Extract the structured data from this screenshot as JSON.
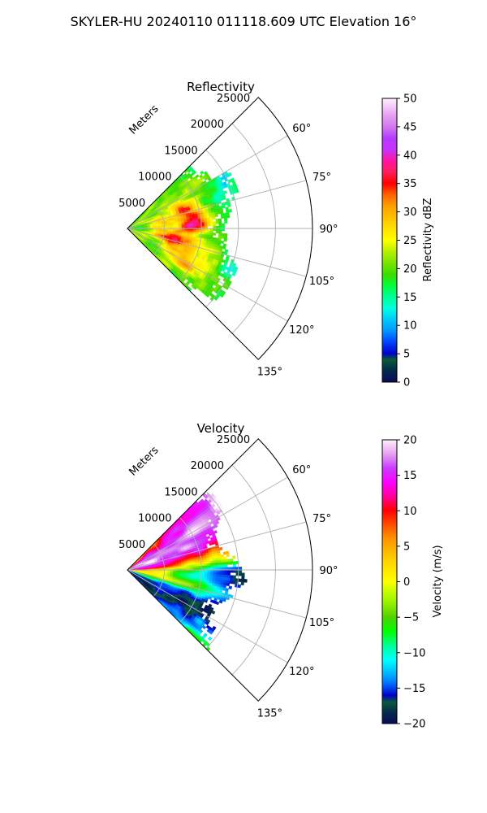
{
  "figure": {
    "suptitle": "SKYLER-HU  20240110  011118.609 UTC Elevation 16°"
  },
  "chart_data": [
    {
      "type": "heatmap",
      "subtype": "polar-sector (radar PPI)",
      "title": "Reflectivity",
      "radial_label": "Meters",
      "radial_ticks": [
        5000,
        10000,
        15000,
        20000,
        25000
      ],
      "radial_tick_labels": [
        "5000",
        "10000",
        "15000",
        "20000",
        "25000"
      ],
      "rlim": [
        0,
        25000
      ],
      "data_extent_m": 17000,
      "theta_ticks_deg": [
        60,
        75,
        90,
        105,
        120,
        135
      ],
      "theta_tick_labels": [
        "60°",
        "75°",
        "90°",
        "105°",
        "120°",
        "135°"
      ],
      "thetalim_deg": [
        45,
        135
      ],
      "grid": true,
      "colorbar": {
        "label": "Reflectivity dBZ",
        "range": [
          0,
          50
        ],
        "ticks": [
          0,
          5,
          10,
          15,
          20,
          25,
          30,
          35,
          40,
          45,
          50
        ],
        "tick_labels": [
          "0",
          "5",
          "10",
          "15",
          "20",
          "25",
          "30",
          "35",
          "40",
          "45",
          "50"
        ],
        "stops": [
          {
            "v": 0,
            "color": "#0a0a5a"
          },
          {
            "v": 2,
            "color": "#04284a"
          },
          {
            "v": 4,
            "color": "#0a5a3a"
          },
          {
            "v": 5,
            "color": "#0000c8"
          },
          {
            "v": 7,
            "color": "#0040ff"
          },
          {
            "v": 9,
            "color": "#0096ff"
          },
          {
            "v": 11,
            "color": "#00c8ff"
          },
          {
            "v": 13,
            "color": "#00ffdc"
          },
          {
            "v": 15,
            "color": "#00ff96"
          },
          {
            "v": 17,
            "color": "#00ff3c"
          },
          {
            "v": 19,
            "color": "#3cdc00"
          },
          {
            "v": 21,
            "color": "#78e600"
          },
          {
            "v": 23,
            "color": "#b4f000"
          },
          {
            "v": 25,
            "color": "#ffff00"
          },
          {
            "v": 28,
            "color": "#ffd200"
          },
          {
            "v": 31,
            "color": "#ffa000"
          },
          {
            "v": 33,
            "color": "#ff6400"
          },
          {
            "v": 35,
            "color": "#ff0000"
          },
          {
            "v": 37,
            "color": "#ff1e5a"
          },
          {
            "v": 39,
            "color": "#ff14a0"
          },
          {
            "v": 41,
            "color": "#c832ff"
          },
          {
            "v": 43,
            "color": "#b43cff"
          },
          {
            "v": 45,
            "color": "#d278f0"
          },
          {
            "v": 47,
            "color": "#e6a0f0"
          },
          {
            "v": 50,
            "color": "#fff0ff"
          }
        ]
      }
    },
    {
      "type": "heatmap",
      "subtype": "polar-sector (radar PPI)",
      "title": "Velocity",
      "radial_label": "Meters",
      "radial_ticks": [
        5000,
        10000,
        15000,
        20000,
        25000
      ],
      "radial_tick_labels": [
        "5000",
        "10000",
        "15000",
        "20000",
        "25000"
      ],
      "rlim": [
        0,
        25000
      ],
      "data_extent_m": 17000,
      "theta_ticks_deg": [
        60,
        75,
        90,
        105,
        120,
        135
      ],
      "theta_tick_labels": [
        "60°",
        "75°",
        "90°",
        "105°",
        "120°",
        "135°"
      ],
      "thetalim_deg": [
        45,
        135
      ],
      "grid": true,
      "colorbar": {
        "label": "Velocity (m/s)",
        "range": [
          -20,
          20
        ],
        "ticks": [
          -20,
          -15,
          -10,
          -5,
          0,
          5,
          10,
          15,
          20
        ],
        "tick_labels": [
          "−20",
          "−15",
          "−10",
          "−5",
          "0",
          "5",
          "10",
          "15",
          "20"
        ],
        "stops": [
          {
            "v": -20,
            "color": "#0a0a5a"
          },
          {
            "v": -18.5,
            "color": "#04284a"
          },
          {
            "v": -17,
            "color": "#0a5a3a"
          },
          {
            "v": -16,
            "color": "#0000c8"
          },
          {
            "v": -14.5,
            "color": "#0064ff"
          },
          {
            "v": -13,
            "color": "#00b4ff"
          },
          {
            "v": -11,
            "color": "#00ffff"
          },
          {
            "v": -9,
            "color": "#00ff96"
          },
          {
            "v": -7,
            "color": "#00ff00"
          },
          {
            "v": -5,
            "color": "#50d200"
          },
          {
            "v": -3,
            "color": "#96f000"
          },
          {
            "v": -1,
            "color": "#d2ff00"
          },
          {
            "v": 0,
            "color": "#ffff00"
          },
          {
            "v": 3,
            "color": "#ffd200"
          },
          {
            "v": 6,
            "color": "#ff9600"
          },
          {
            "v": 8,
            "color": "#ff5000"
          },
          {
            "v": 10,
            "color": "#ff0000"
          },
          {
            "v": 12,
            "color": "#ff0096"
          },
          {
            "v": 14,
            "color": "#ff00ff"
          },
          {
            "v": 16,
            "color": "#c83cff"
          },
          {
            "v": 18,
            "color": "#e6a0f0"
          },
          {
            "v": 20,
            "color": "#fff0ff"
          }
        ]
      }
    }
  ]
}
